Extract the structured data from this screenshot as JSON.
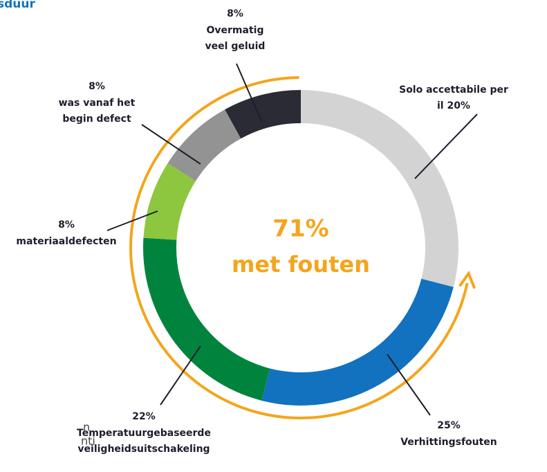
{
  "chart_data": {
    "type": "donut",
    "center_text": [
      "71%",
      "met fouten"
    ],
    "labels": [
      [
        "Solo accettabile per",
        "il 20%"
      ],
      [
        "Verhittingsfouten"
      ],
      [
        "Temperatuurgebaseerde",
        "veiligheidsuitschakeling"
      ],
      [
        "materiaaldefecten"
      ],
      [
        "was vanaf het",
        "begin defect"
      ],
      [
        "Overmatig",
        "veel geluid"
      ]
    ],
    "values": [
      29,
      25,
      22,
      8,
      8,
      8
    ],
    "value_labels": [
      null,
      "25%",
      "22%",
      "8%",
      "8%",
      "8%"
    ],
    "colors": [
      "#d3d3d3",
      "#1272bf",
      "#00843d",
      "#8dc63f",
      "#939393",
      "#2b2b36"
    ],
    "fragments": [
      "sduur",
      "n",
      "nti"
    ]
  }
}
